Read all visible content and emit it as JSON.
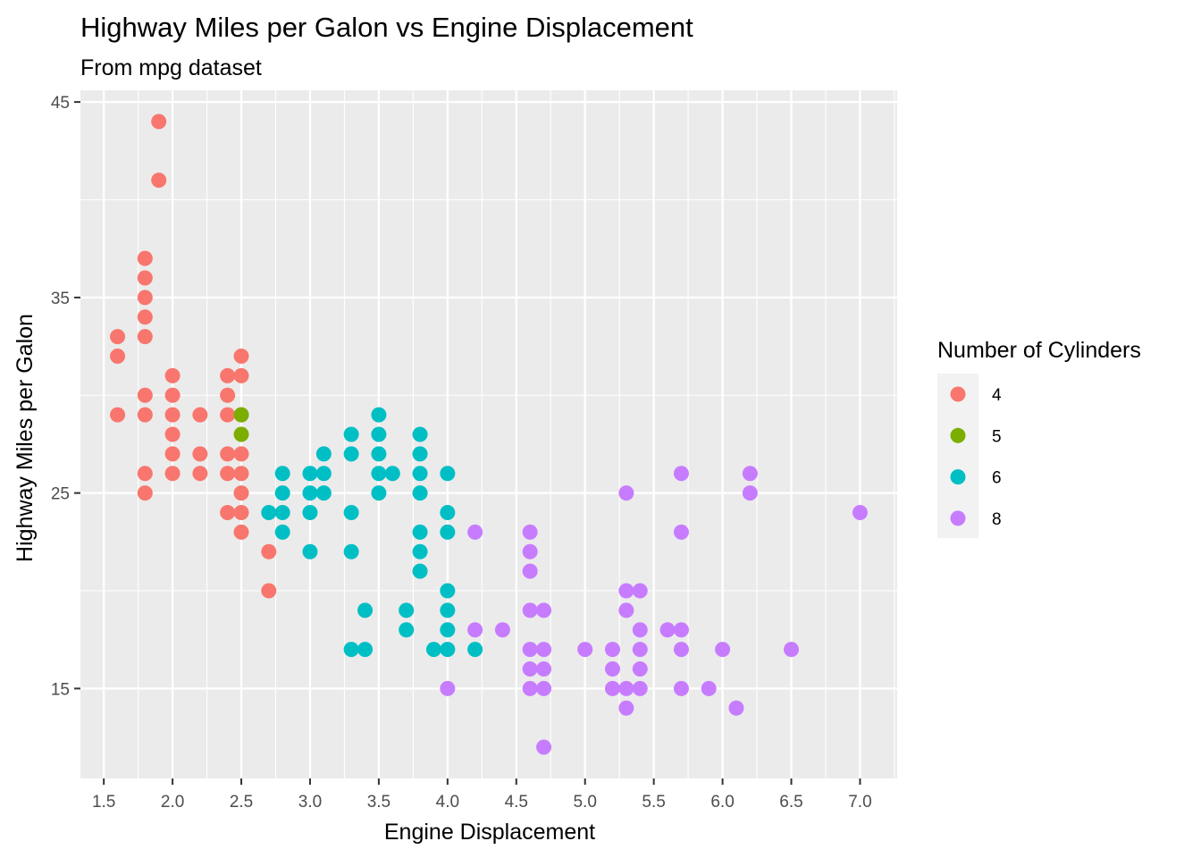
{
  "chart_data": {
    "type": "scatter",
    "title": "Highway Miles per Galon vs Engine Displacement",
    "subtitle": "From mpg dataset",
    "xlabel": "Engine Displacement",
    "ylabel": "Highway Miles per Galon",
    "xlim": [
      1.33,
      7.27
    ],
    "ylim": [
      10.4,
      45.6
    ],
    "x_ticks": [
      1.5,
      2.0,
      2.5,
      3.0,
      3.5,
      4.0,
      4.5,
      5.0,
      5.5,
      6.0,
      6.5,
      7.0
    ],
    "x_tick_labels": [
      "1.5",
      "2.0",
      "2.5",
      "3.0",
      "3.5",
      "4.0",
      "4.5",
      "5.0",
      "5.5",
      "6.0",
      "6.5",
      "7.0"
    ],
    "y_ticks": [
      15,
      25,
      35,
      45
    ],
    "y_tick_labels": [
      "15",
      "25",
      "35",
      "45"
    ],
    "grid": true,
    "panel_background": "#ebebeb",
    "legend": {
      "title": "Number of Cylinders",
      "placement": "right",
      "entries": [
        {
          "label": "4",
          "color": "#F8766D"
        },
        {
          "label": "5",
          "color": "#7CAE00"
        },
        {
          "label": "6",
          "color": "#00BFC4"
        },
        {
          "label": "8",
          "color": "#C77CFF"
        }
      ]
    },
    "series": [
      {
        "name": "4",
        "color": "#F8766D",
        "points": [
          [
            1.6,
            33
          ],
          [
            1.6,
            32
          ],
          [
            1.6,
            29
          ],
          [
            1.8,
            37
          ],
          [
            1.8,
            36
          ],
          [
            1.8,
            35
          ],
          [
            1.8,
            34
          ],
          [
            1.8,
            33
          ],
          [
            1.8,
            30
          ],
          [
            1.8,
            29
          ],
          [
            1.8,
            26
          ],
          [
            1.8,
            25
          ],
          [
            1.9,
            44
          ],
          [
            1.9,
            41
          ],
          [
            2.0,
            31
          ],
          [
            2.0,
            30
          ],
          [
            2.0,
            29
          ],
          [
            2.0,
            28
          ],
          [
            2.0,
            27
          ],
          [
            2.0,
            26
          ],
          [
            2.2,
            29
          ],
          [
            2.2,
            27
          ],
          [
            2.2,
            26
          ],
          [
            2.4,
            31
          ],
          [
            2.4,
            30
          ],
          [
            2.4,
            29
          ],
          [
            2.4,
            27
          ],
          [
            2.4,
            26
          ],
          [
            2.4,
            24
          ],
          [
            2.5,
            32
          ],
          [
            2.5,
            31
          ],
          [
            2.5,
            29
          ],
          [
            2.5,
            27
          ],
          [
            2.5,
            26
          ],
          [
            2.5,
            25
          ],
          [
            2.5,
            24
          ],
          [
            2.5,
            23
          ],
          [
            2.7,
            22
          ],
          [
            2.7,
            20
          ]
        ]
      },
      {
        "name": "5",
        "color": "#7CAE00",
        "points": [
          [
            2.5,
            29
          ],
          [
            2.5,
            28
          ]
        ]
      },
      {
        "name": "6",
        "color": "#00BFC4",
        "points": [
          [
            2.7,
            24
          ],
          [
            2.8,
            26
          ],
          [
            2.8,
            25
          ],
          [
            2.8,
            24
          ],
          [
            2.8,
            23
          ],
          [
            3.0,
            26
          ],
          [
            3.0,
            25
          ],
          [
            3.0,
            24
          ],
          [
            3.0,
            22
          ],
          [
            3.1,
            27
          ],
          [
            3.1,
            26
          ],
          [
            3.1,
            25
          ],
          [
            3.3,
            28
          ],
          [
            3.3,
            27
          ],
          [
            3.3,
            24
          ],
          [
            3.3,
            22
          ],
          [
            3.3,
            17
          ],
          [
            3.4,
            19
          ],
          [
            3.4,
            17
          ],
          [
            3.5,
            29
          ],
          [
            3.5,
            28
          ],
          [
            3.5,
            27
          ],
          [
            3.5,
            26
          ],
          [
            3.5,
            25
          ],
          [
            3.6,
            26
          ],
          [
            3.7,
            19
          ],
          [
            3.7,
            18
          ],
          [
            3.8,
            28
          ],
          [
            3.8,
            27
          ],
          [
            3.8,
            26
          ],
          [
            3.8,
            25
          ],
          [
            3.8,
            23
          ],
          [
            3.8,
            22
          ],
          [
            3.8,
            21
          ],
          [
            3.9,
            17
          ],
          [
            4.0,
            26
          ],
          [
            4.0,
            24
          ],
          [
            4.0,
            23
          ],
          [
            4.0,
            20
          ],
          [
            4.0,
            19
          ],
          [
            4.0,
            18
          ],
          [
            4.0,
            17
          ],
          [
            4.2,
            17
          ]
        ]
      },
      {
        "name": "8",
        "color": "#C77CFF",
        "points": [
          [
            4.0,
            15
          ],
          [
            4.2,
            23
          ],
          [
            4.2,
            18
          ],
          [
            4.4,
            18
          ],
          [
            4.6,
            23
          ],
          [
            4.6,
            22
          ],
          [
            4.6,
            21
          ],
          [
            4.6,
            19
          ],
          [
            4.6,
            17
          ],
          [
            4.6,
            16
          ],
          [
            4.6,
            15
          ],
          [
            4.7,
            19
          ],
          [
            4.7,
            17
          ],
          [
            4.7,
            16
          ],
          [
            4.7,
            15
          ],
          [
            4.7,
            12
          ],
          [
            5.0,
            17
          ],
          [
            5.2,
            17
          ],
          [
            5.2,
            16
          ],
          [
            5.2,
            15
          ],
          [
            5.3,
            25
          ],
          [
            5.3,
            20
          ],
          [
            5.3,
            19
          ],
          [
            5.3,
            15
          ],
          [
            5.3,
            14
          ],
          [
            5.4,
            20
          ],
          [
            5.4,
            18
          ],
          [
            5.4,
            17
          ],
          [
            5.4,
            16
          ],
          [
            5.4,
            15
          ],
          [
            5.6,
            18
          ],
          [
            5.7,
            26
          ],
          [
            5.7,
            23
          ],
          [
            5.7,
            18
          ],
          [
            5.7,
            17
          ],
          [
            5.7,
            15
          ],
          [
            5.9,
            15
          ],
          [
            6.0,
            17
          ],
          [
            6.1,
            14
          ],
          [
            6.2,
            26
          ],
          [
            6.2,
            25
          ],
          [
            6.5,
            17
          ],
          [
            7.0,
            24
          ]
        ]
      }
    ]
  }
}
